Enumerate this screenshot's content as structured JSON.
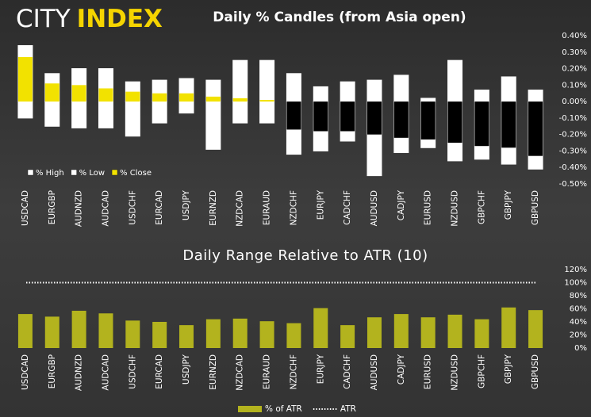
{
  "logo": [
    "CITY",
    "INDEX"
  ],
  "chart_data": [
    {
      "type": "candle",
      "title": "Daily % Candles (from Asia open)",
      "categories": [
        "USDCAD",
        "EURGBP",
        "AUDNZD",
        "AUDCAD",
        "USDCHF",
        "EURCAD",
        "USDJPY",
        "EURNZD",
        "NZDCAD",
        "EURAUD",
        "NZDCHF",
        "EURJPY",
        "CADCHF",
        "AUDUSD",
        "CADJPY",
        "EURUSD",
        "NZDUSD",
        "GBPCHF",
        "GBPJPY",
        "GBPUSD"
      ],
      "series": [
        {
          "name": "% High",
          "color": "#ffffff",
          "values": [
            0.34,
            0.17,
            0.2,
            0.2,
            0.12,
            0.13,
            0.14,
            0.13,
            0.25,
            0.25,
            0.17,
            0.09,
            0.12,
            0.13,
            0.16,
            0.02,
            0.25,
            0.07,
            0.15,
            0.07
          ]
        },
        {
          "name": "% Low",
          "color": "#ffffff",
          "values": [
            -0.1,
            -0.15,
            -0.16,
            -0.16,
            -0.21,
            -0.13,
            -0.07,
            -0.29,
            -0.13,
            -0.13,
            -0.32,
            -0.3,
            -0.24,
            -0.45,
            -0.31,
            -0.28,
            -0.36,
            -0.35,
            -0.38,
            -0.41
          ]
        },
        {
          "name": "% Close",
          "color": "#f2e200",
          "negative_color": "#000000",
          "values": [
            0.27,
            0.11,
            0.1,
            0.08,
            0.06,
            0.05,
            0.05,
            0.03,
            0.02,
            0.01,
            -0.17,
            -0.18,
            -0.18,
            -0.2,
            -0.22,
            -0.23,
            -0.25,
            -0.27,
            -0.28,
            -0.33
          ]
        }
      ],
      "ylim": [
        -0.5,
        0.4
      ],
      "yticks": [
        {
          "value": -0.5,
          "label": "-0.50%"
        },
        {
          "value": -0.4,
          "label": "-0.40%"
        },
        {
          "value": -0.3,
          "label": "-0.30%"
        },
        {
          "value": -0.2,
          "label": "-0.20%"
        },
        {
          "value": -0.1,
          "label": "-0.10%"
        },
        {
          "value": 0,
          "label": "0.00%"
        },
        {
          "value": 0.1,
          "label": "0.10%"
        },
        {
          "value": 0.2,
          "label": "0.20%"
        },
        {
          "value": 0.3,
          "label": "0.30%"
        },
        {
          "value": 0.4,
          "label": "0.40%"
        }
      ],
      "grid": false,
      "legend": "bottom-left"
    },
    {
      "type": "bar",
      "title": "Daily Range Relative to ATR (10)",
      "categories": [
        "USDCAD",
        "EURGBP",
        "AUDNZD",
        "AUDCAD",
        "USDCHF",
        "EURCAD",
        "USDJPY",
        "EURNZD",
        "NZDCAD",
        "EURAUD",
        "NZDCHF",
        "EURJPY",
        "CADCHF",
        "AUDUSD",
        "CADJPY",
        "EURUSD",
        "NZDUSD",
        "GBPCHF",
        "GBPJPY",
        "GBPUSD"
      ],
      "series": [
        {
          "name": "% of ATR",
          "color": "#b3b31e",
          "values": [
            52,
            48,
            57,
            53,
            42,
            40,
            35,
            44,
            45,
            41,
            38,
            61,
            35,
            47,
            52,
            47,
            51,
            44,
            62,
            58
          ]
        }
      ],
      "reference_lines": [
        {
          "name": "ATR",
          "value": 100,
          "color": "#ffffff"
        }
      ],
      "ylim": [
        0,
        120
      ],
      "yticks": [
        {
          "value": 0,
          "label": "0%"
        },
        {
          "value": 20,
          "label": "20%"
        },
        {
          "value": 40,
          "label": "40%"
        },
        {
          "value": 60,
          "label": "60%"
        },
        {
          "value": 80,
          "label": "80%"
        },
        {
          "value": 100,
          "label": "100%"
        },
        {
          "value": 120,
          "label": "120%"
        }
      ],
      "grid": false,
      "legend": "bottom"
    }
  ]
}
